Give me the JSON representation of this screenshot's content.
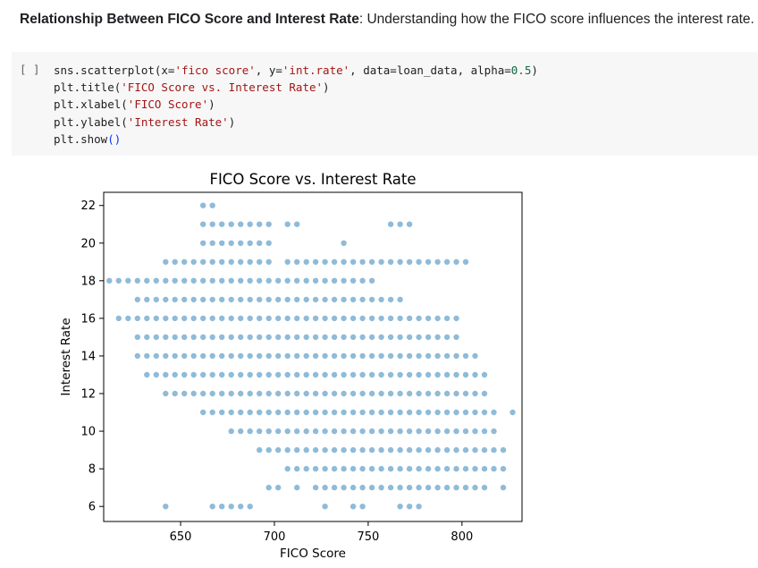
{
  "heading": {
    "bold": "Relationship Between FICO Score and Interest Rate",
    "rest": ": Understanding how the FICO score influences the interest rate."
  },
  "cell": {
    "run_label": "[ ]",
    "lines": [
      [
        {
          "t": "sns.scatterplot(x="
        },
        {
          "t": "'fico score'",
          "c": "s"
        },
        {
          "t": ", y="
        },
        {
          "t": "'int.rate'",
          "c": "s"
        },
        {
          "t": ", data=loan_data, alpha="
        },
        {
          "t": "0.5",
          "c": "n"
        },
        {
          "t": ")"
        }
      ],
      [
        {
          "t": "plt.title("
        },
        {
          "t": "'FICO Score vs. Interest Rate'",
          "c": "s"
        },
        {
          "t": ")"
        }
      ],
      [
        {
          "t": "plt.xlabel("
        },
        {
          "t": "'FICO Score'",
          "c": "s"
        },
        {
          "t": ")"
        }
      ],
      [
        {
          "t": "plt.ylabel("
        },
        {
          "t": "'Interest Rate'",
          "c": "s"
        },
        {
          "t": ")"
        }
      ],
      [
        {
          "t": "plt.show"
        },
        {
          "t": "()",
          "c": "p"
        }
      ]
    ]
  },
  "chart_data": {
    "type": "scatter",
    "title": "FICO Score vs. Interest Rate",
    "xlabel": "FICO Score",
    "ylabel": "Interest Rate",
    "xlim": [
      609,
      832
    ],
    "ylim": [
      5.2,
      22.7
    ],
    "xticks": [
      650,
      700,
      750,
      800
    ],
    "yticks": [
      6,
      8,
      10,
      12,
      14,
      16,
      18,
      20,
      22
    ],
    "grid": false,
    "point_color": "#1f77b4",
    "alpha": 0.5,
    "rows": [
      {
        "y": 22,
        "x": [
          662,
          667
        ]
      },
      {
        "y": 21,
        "x": [
          662,
          667,
          672,
          677,
          682,
          687,
          692,
          697,
          707,
          712,
          762,
          767,
          772
        ]
      },
      {
        "y": 20,
        "x": [
          662,
          667,
          672,
          677,
          682,
          687,
          692,
          697,
          737
        ]
      },
      {
        "y": 19,
        "x": [
          642,
          647,
          652,
          657,
          662,
          667,
          672,
          677,
          682,
          687,
          692,
          697,
          707,
          712,
          717,
          722,
          727,
          732,
          737,
          742,
          747,
          752,
          757,
          762,
          767,
          772,
          777,
          782,
          787,
          792,
          797,
          802
        ]
      },
      {
        "y": 18,
        "x": [
          612,
          617,
          622,
          627,
          632,
          637,
          642,
          647,
          652,
          657,
          662,
          667,
          672,
          677,
          682,
          687,
          692,
          697,
          702,
          707,
          712,
          717,
          722,
          727,
          732,
          737,
          742,
          747,
          752
        ]
      },
      {
        "y": 17,
        "x": [
          627,
          632,
          637,
          642,
          647,
          652,
          657,
          662,
          667,
          672,
          677,
          682,
          687,
          692,
          697,
          702,
          707,
          712,
          717,
          722,
          727,
          732,
          737,
          742,
          747,
          752,
          757,
          762,
          767
        ]
      },
      {
        "y": 16,
        "x": [
          617,
          622,
          627,
          632,
          637,
          642,
          647,
          652,
          657,
          662,
          667,
          672,
          677,
          682,
          687,
          692,
          697,
          702,
          707,
          712,
          717,
          722,
          727,
          732,
          737,
          742,
          747,
          752,
          757,
          762,
          767,
          772,
          777,
          782,
          787,
          792,
          797
        ]
      },
      {
        "y": 15,
        "x": [
          627,
          632,
          637,
          642,
          647,
          652,
          657,
          662,
          667,
          672,
          677,
          682,
          687,
          692,
          697,
          702,
          707,
          712,
          717,
          722,
          727,
          732,
          737,
          742,
          747,
          752,
          757,
          762,
          767,
          772,
          777,
          782,
          787,
          792,
          797
        ]
      },
      {
        "y": 14,
        "x": [
          627,
          632,
          637,
          642,
          647,
          652,
          657,
          662,
          667,
          672,
          677,
          682,
          687,
          692,
          697,
          702,
          707,
          712,
          717,
          722,
          727,
          732,
          737,
          742,
          747,
          752,
          757,
          762,
          767,
          772,
          777,
          782,
          787,
          792,
          797,
          802,
          807
        ]
      },
      {
        "y": 13,
        "x": [
          632,
          637,
          642,
          647,
          652,
          657,
          662,
          667,
          672,
          677,
          682,
          687,
          692,
          697,
          702,
          707,
          712,
          717,
          722,
          727,
          732,
          737,
          742,
          747,
          752,
          757,
          762,
          767,
          772,
          777,
          782,
          787,
          792,
          797,
          802,
          807,
          812
        ]
      },
      {
        "y": 12,
        "x": [
          642,
          647,
          652,
          657,
          662,
          667,
          672,
          677,
          682,
          687,
          692,
          697,
          702,
          707,
          712,
          717,
          722,
          727,
          732,
          737,
          742,
          747,
          752,
          757,
          762,
          767,
          772,
          777,
          782,
          787,
          792,
          797,
          802,
          807,
          812
        ]
      },
      {
        "y": 11,
        "x": [
          662,
          667,
          672,
          677,
          682,
          687,
          692,
          697,
          702,
          707,
          712,
          717,
          722,
          727,
          732,
          737,
          742,
          747,
          752,
          757,
          762,
          767,
          772,
          777,
          782,
          787,
          792,
          797,
          802,
          807,
          812,
          817,
          827
        ]
      },
      {
        "y": 10,
        "x": [
          677,
          682,
          687,
          692,
          697,
          702,
          707,
          712,
          717,
          722,
          727,
          732,
          737,
          742,
          747,
          752,
          757,
          762,
          767,
          772,
          777,
          782,
          787,
          792,
          797,
          802,
          807,
          812,
          817
        ]
      },
      {
        "y": 9,
        "x": [
          692,
          697,
          702,
          707,
          712,
          717,
          722,
          727,
          732,
          737,
          742,
          747,
          752,
          757,
          762,
          767,
          772,
          777,
          782,
          787,
          792,
          797,
          802,
          807,
          812,
          817,
          822
        ]
      },
      {
        "y": 8,
        "x": [
          707,
          712,
          717,
          722,
          727,
          732,
          737,
          742,
          747,
          752,
          757,
          762,
          767,
          772,
          777,
          782,
          787,
          792,
          797,
          802,
          807,
          812,
          817,
          822
        ]
      },
      {
        "y": 7,
        "x": [
          697,
          702,
          712,
          722,
          727,
          732,
          737,
          742,
          747,
          752,
          757,
          762,
          767,
          772,
          777,
          782,
          787,
          792,
          797,
          802,
          807,
          812,
          822
        ]
      },
      {
        "y": 6,
        "x": [
          642,
          667,
          672,
          677,
          682,
          687,
          727,
          742,
          747,
          767,
          772,
          777
        ]
      }
    ]
  }
}
